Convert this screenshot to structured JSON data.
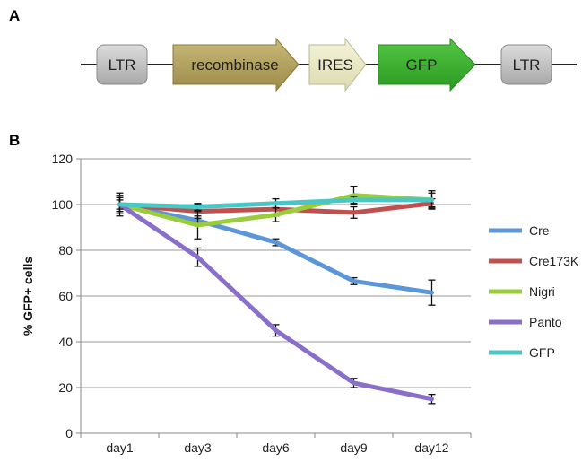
{
  "panels": {
    "a": "A",
    "b": "B"
  },
  "construct": {
    "elements": [
      {
        "label": "LTR",
        "shape": "rounded-box",
        "color": "#c4c4c4"
      },
      {
        "label": "recombinase",
        "shape": "arrow",
        "color": "#b5a460"
      },
      {
        "label": "IRES",
        "shape": "arrow",
        "color": "#ecebc4"
      },
      {
        "label": "GFP",
        "shape": "arrow",
        "color": "#3db52e"
      },
      {
        "label": "LTR",
        "shape": "rounded-box",
        "color": "#c4c4c4"
      }
    ]
  },
  "chart_data": {
    "type": "line",
    "categories": [
      "day1",
      "day3",
      "day6",
      "day9",
      "day12"
    ],
    "ylabel": "% GFP+ cells",
    "xlabel": "",
    "ylim": [
      0,
      120
    ],
    "yticks": [
      0,
      20,
      40,
      60,
      80,
      100,
      120
    ],
    "grid": true,
    "legend_position": "right",
    "series": [
      {
        "name": "Cre",
        "color": "#5b96d8",
        "values": [
          100,
          93,
          83.5,
          66.5,
          61.5
        ],
        "errors": [
          3,
          2,
          1.5,
          1.5,
          5.5
        ]
      },
      {
        "name": "Cre173K",
        "color": "#c0504d",
        "values": [
          100,
          97,
          98,
          96.5,
          100.5
        ],
        "errors": [
          3,
          3,
          3,
          2.5,
          2
        ]
      },
      {
        "name": "Nigri",
        "color": "#9acd3c",
        "values": [
          100,
          91,
          95.5,
          104,
          102
        ],
        "errors": [
          5,
          6,
          3,
          4,
          4
        ]
      },
      {
        "name": "Panto",
        "color": "#8a6fca",
        "values": [
          100,
          77,
          45,
          22,
          15
        ],
        "errors": [
          4,
          4,
          2.5,
          2,
          2
        ]
      },
      {
        "name": "GFP",
        "color": "#4bc6c6",
        "values": [
          100,
          99,
          100.5,
          102,
          102
        ],
        "errors": [
          2,
          1.5,
          2,
          1.5,
          3
        ]
      }
    ]
  }
}
